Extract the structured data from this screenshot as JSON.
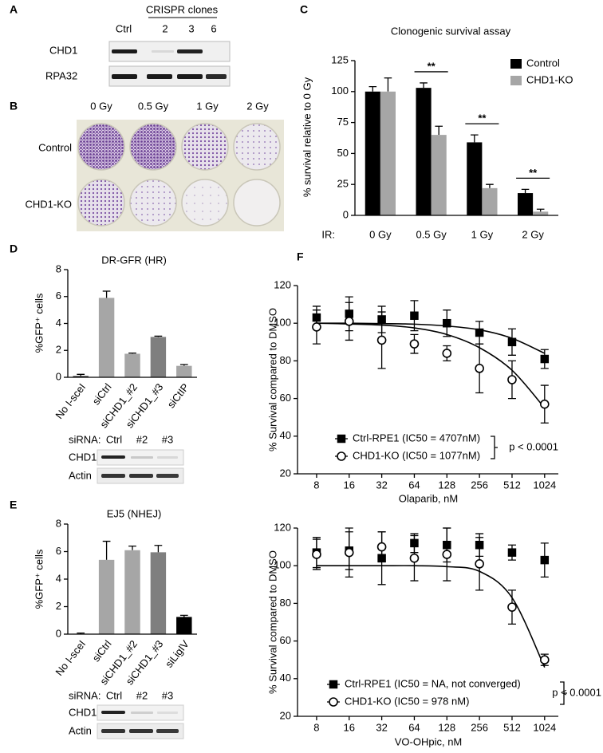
{
  "figure": {
    "panel_labels": [
      "A",
      "B",
      "C",
      "D",
      "E",
      "F"
    ],
    "blot_a": {
      "header": "CRISPR clones",
      "lanes": [
        "Ctrl",
        "2",
        "3",
        "6"
      ],
      "rows": [
        "CHD1",
        "RPA32"
      ]
    },
    "plates_b": {
      "columns": [
        "0 Gy",
        "0.5 Gy",
        "1 Gy",
        "2 Gy"
      ],
      "rows": [
        "Control",
        "CHD1-KO"
      ]
    },
    "blot_d": {
      "lanes_label": "siRNA:",
      "lanes": [
        "Ctrl",
        "#2",
        "#3"
      ],
      "rows": [
        "CHD1",
        "Actin"
      ]
    },
    "blot_e": {
      "lanes_label": "siRNA:",
      "lanes": [
        "Ctrl",
        "#2",
        "#3"
      ],
      "rows": [
        "CHD1",
        "Actin"
      ]
    }
  },
  "chart_data": [
    {
      "type": "bar",
      "title": "Clonogenic survival assay",
      "y_label": "% survival relative to 0 Gy",
      "x_label": "IR:",
      "categories": [
        "0 Gy",
        "0.5 Gy",
        "1 Gy",
        "2 Gy"
      ],
      "series": [
        {
          "name": "Control",
          "color": "#000000",
          "values": [
            100,
            103,
            59,
            18
          ],
          "errors": [
            4,
            4,
            6,
            3
          ]
        },
        {
          "name": "CHD1-KO",
          "color": "#a6a6a6",
          "values": [
            100,
            65,
            22,
            3
          ],
          "errors": [
            11,
            7,
            3,
            2
          ]
        }
      ],
      "ylim": [
        0,
        125
      ],
      "yticks": [
        0,
        25,
        50,
        75,
        100,
        125
      ],
      "legend": "upper right",
      "annotations": [
        "**",
        "**",
        "**"
      ]
    },
    {
      "type": "bar",
      "title": "DR-GFR (HR)",
      "y_label": "%GFP⁺ cells",
      "categories": [
        "No I-sceI",
        "siCtrl",
        "siCHD1_#2",
        "siCHD1_#3",
        "siCtIP"
      ],
      "values": [
        0.1,
        5.9,
        1.75,
        3.0,
        0.85
      ],
      "errors": [
        0.12,
        0.5,
        0.05,
        0.06,
        0.1
      ],
      "colors": [
        "#404040",
        "#a6a6a6",
        "#a6a6a6",
        "#7f7f7f",
        "#a6a6a6"
      ],
      "ylim": [
        0,
        8
      ],
      "yticks": [
        0,
        2,
        4,
        6,
        8
      ]
    },
    {
      "type": "bar",
      "title": "EJ5 (NHEJ)",
      "y_label": "%GFP⁺ cells",
      "categories": [
        "No I-sceI",
        "siCtrl",
        "siCHD1_#2",
        "siCHD1_#3",
        "siLigIV"
      ],
      "values": [
        0.03,
        5.4,
        6.1,
        5.95,
        1.25
      ],
      "errors": [
        0.05,
        1.35,
        0.3,
        0.5,
        0.12
      ],
      "colors": [
        "#404040",
        "#a6a6a6",
        "#a6a6a6",
        "#7f7f7f",
        "#000000"
      ],
      "ylim": [
        0,
        8
      ],
      "yticks": [
        0,
        2,
        4,
        6,
        8
      ]
    },
    {
      "type": "scatter",
      "x_label": "Olaparib, nM",
      "y_label": "% Survival compared to DMSO",
      "log_x": true,
      "x": [
        8,
        16,
        32,
        64,
        128,
        256,
        512,
        1024
      ],
      "xlim": [
        5.33,
        1371
      ],
      "xticks": [
        8,
        16,
        32,
        64,
        128,
        256,
        512,
        1024
      ],
      "ylim": [
        20,
        120
      ],
      "yticks": [
        20,
        40,
        60,
        80,
        100,
        120
      ],
      "series": [
        {
          "name": "Ctrl-RPE1 (IC50 = 4707nM)",
          "marker": "square",
          "filled": true,
          "color": "#000000",
          "values": [
            103,
            105,
            102,
            104,
            100,
            95,
            90,
            81
          ],
          "errors": [
            6,
            9,
            7,
            8,
            7,
            6,
            7,
            5
          ],
          "fit": [
            100,
            100,
            99.8,
            99.5,
            98.5,
            96.5,
            92,
            84
          ]
        },
        {
          "name": "CHD1-KO (IC50 = 1077nM)",
          "marker": "circle",
          "filled": false,
          "color": "#000000",
          "values": [
            98,
            101,
            91,
            89,
            84,
            76,
            70,
            57
          ],
          "errors": [
            9,
            10,
            15,
            5,
            4,
            13,
            10,
            10
          ],
          "fit": [
            100,
            99.6,
            99,
            97.5,
            94,
            87,
            75,
            55
          ]
        }
      ],
      "legend": "lower left",
      "annotation": "p < 0.0001"
    },
    {
      "type": "scatter",
      "x_label": "VO-OHpic, nM",
      "y_label": "% Survival compared to DMSO",
      "log_x": true,
      "x": [
        8,
        16,
        32,
        64,
        128,
        256,
        512,
        1024
      ],
      "xlim": [
        5.33,
        1371
      ],
      "xticks": [
        8,
        16,
        32,
        64,
        128,
        256,
        512,
        1024
      ],
      "ylim": [
        20,
        120
      ],
      "yticks": [
        20,
        40,
        60,
        80,
        100,
        120
      ],
      "series": [
        {
          "name": "Ctrl-RPE1 (IC50 = NA, not converged)",
          "marker": "square",
          "filled": true,
          "color": "#000000",
          "values": [
            107,
            108,
            104,
            112,
            111,
            111,
            107,
            103
          ],
          "errors": [
            8,
            10,
            14,
            5,
            9,
            6,
            4,
            9
          ]
        },
        {
          "name": "CHD1-KO (IC50 = 978 nM)",
          "marker": "circle",
          "filled": false,
          "color": "#000000",
          "values": [
            106,
            107,
            110,
            104,
            106,
            101,
            78,
            50
          ],
          "errors": [
            8,
            13,
            8,
            12,
            14,
            14,
            9,
            3
          ],
          "fit": [
            100,
            100,
            100,
            100,
            99.5,
            97,
            83,
            46
          ]
        }
      ],
      "legend": "lower left",
      "annotation": "p < 0.0001"
    }
  ]
}
